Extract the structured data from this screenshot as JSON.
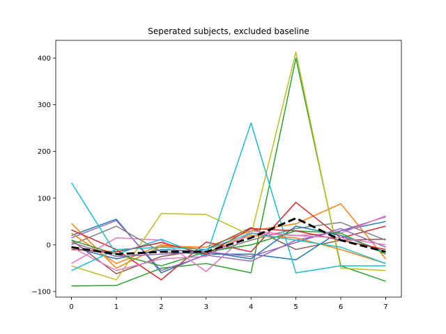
{
  "chart_data": {
    "type": "line",
    "title": "Seperated subjects, excluded baseline",
    "xlabel": "",
    "ylabel": "",
    "x": [
      0,
      1,
      2,
      3,
      4,
      5,
      6,
      7
    ],
    "xlim": [
      -0.35,
      7.35
    ],
    "ylim": [
      -112,
      438
    ],
    "xticks": [
      0,
      1,
      2,
      3,
      4,
      5,
      6,
      7
    ],
    "yticks": [
      -100,
      0,
      100,
      200,
      300,
      400
    ],
    "grid": false,
    "legend": "none",
    "series": [
      {
        "color": "#1f77b4",
        "values": [
          20,
          55,
          -60,
          -20,
          -20,
          -32,
          30,
          50
        ]
      },
      {
        "color": "#ff7f0e",
        "values": [
          46,
          -50,
          -3,
          -5,
          30,
          45,
          88,
          -30
        ]
      },
      {
        "color": "#2ca02c",
        "values": [
          -88,
          -87,
          -50,
          -40,
          -60,
          400,
          -45,
          -78
        ]
      },
      {
        "color": "#d62728",
        "values": [
          32,
          -10,
          -75,
          6,
          -15,
          91,
          15,
          40
        ]
      },
      {
        "color": "#9467bd",
        "values": [
          15,
          52,
          -55,
          -22,
          -35,
          10,
          30,
          60
        ]
      },
      {
        "color": "#8c564b",
        "values": [
          10,
          -62,
          -25,
          -10,
          37,
          -10,
          10,
          12
        ]
      },
      {
        "color": "#e377c2",
        "values": [
          -40,
          15,
          10,
          -57,
          30,
          20,
          25,
          62
        ]
      },
      {
        "color": "#7f7f7f",
        "values": [
          0,
          40,
          -15,
          -20,
          10,
          35,
          48,
          10
        ]
      },
      {
        "color": "#bcbd22",
        "values": [
          -45,
          -75,
          67,
          65,
          20,
          413,
          -50,
          -55
        ]
      },
      {
        "color": "#17becf",
        "values": [
          133,
          -20,
          12,
          -25,
          261,
          -60,
          -45,
          -45
        ]
      },
      {
        "color": "#1f77b4",
        "values": [
          -5,
          -30,
          -10,
          -15,
          -30,
          40,
          20,
          -15
        ]
      },
      {
        "color": "#ff7f0e",
        "values": [
          25,
          -40,
          0,
          -10,
          20,
          15,
          -10,
          -40
        ]
      },
      {
        "color": "#2ca02c",
        "values": [
          10,
          -20,
          -45,
          -15,
          0,
          30,
          25,
          -20
        ]
      },
      {
        "color": "#d62728",
        "values": [
          -10,
          -15,
          5,
          -20,
          35,
          30,
          10,
          -10
        ]
      },
      {
        "color": "#9467bd",
        "values": [
          5,
          -25,
          -20,
          -15,
          -25,
          5,
          35,
          -5
        ]
      },
      {
        "color": "#e377c2",
        "values": [
          -5,
          -55,
          -30,
          -25,
          25,
          20,
          15,
          0
        ]
      },
      {
        "color": "#17becf",
        "values": [
          -55,
          -10,
          -5,
          -10,
          25,
          10,
          -5,
          -40
        ]
      },
      {
        "color": "#000000",
        "dashed": true,
        "thick": true,
        "values": [
          -5,
          -20,
          -15,
          -15,
          15,
          57,
          10,
          -15
        ]
      }
    ]
  }
}
